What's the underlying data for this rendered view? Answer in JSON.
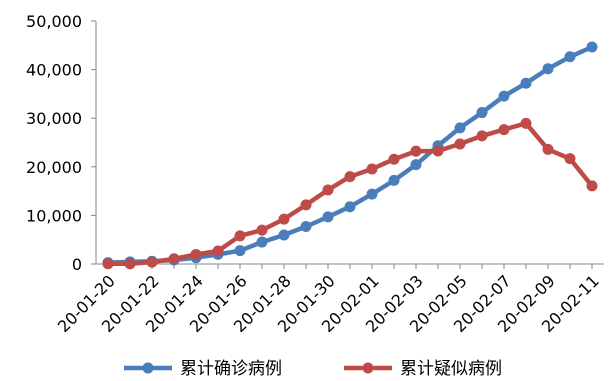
{
  "chart_data": {
    "type": "line",
    "title": "",
    "xlabel": "",
    "ylabel": "",
    "ylim": [
      0,
      50000
    ],
    "y_ticks": [
      "0",
      "10,000",
      "20,000",
      "30,000",
      "40,000",
      "50,000"
    ],
    "y_tick_values": [
      0,
      10000,
      20000,
      30000,
      40000,
      50000
    ],
    "x": [
      "20-01-20",
      "20-01-21",
      "20-01-22",
      "20-01-23",
      "20-01-24",
      "20-01-25",
      "20-01-26",
      "20-01-27",
      "20-01-28",
      "20-01-29",
      "20-01-30",
      "20-01-31",
      "20-02-01",
      "20-02-02",
      "20-02-03",
      "20-02-04",
      "20-02-05",
      "20-02-06",
      "20-02-07",
      "20-02-08",
      "20-02-09",
      "20-02-10",
      "20-02-11"
    ],
    "x_tick_labels": [
      "20-01-20",
      "20-01-22",
      "20-01-24",
      "20-01-26",
      "20-01-28",
      "20-01-30",
      "20-02-01",
      "20-02-03",
      "20-02-05",
      "20-02-07",
      "20-02-09",
      "20-02-11"
    ],
    "grid": false,
    "legend_position": "bottom",
    "series": [
      {
        "name": "累计确诊病例",
        "color": "#4a7ebb",
        "values": [
          291,
          440,
          571,
          830,
          1287,
          1975,
          2744,
          4515,
          5974,
          7711,
          9692,
          11791,
          14380,
          17205,
          20438,
          24324,
          28018,
          31161,
          34546,
          37198,
          40171,
          42638,
          44653
        ]
      },
      {
        "name": "累计疑似病例",
        "color": "#be4b48",
        "values": [
          54,
          37,
          393,
          1072,
          1965,
          2684,
          5794,
          6973,
          9239,
          12167,
          15238,
          17988,
          19544,
          21558,
          23214,
          23260,
          24702,
          26359,
          27657,
          28942,
          23589,
          21675,
          16067
        ]
      }
    ]
  }
}
